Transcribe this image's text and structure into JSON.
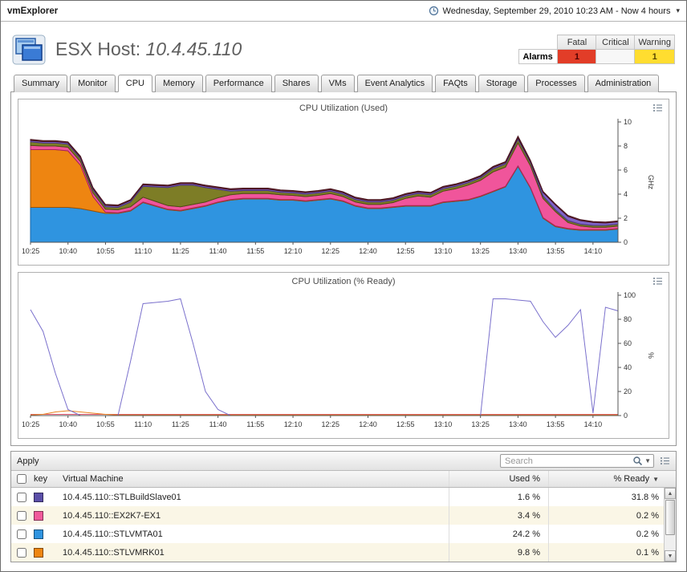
{
  "topbar": {
    "app_name": "vmExplorer",
    "time_range": "Wednesday, September 29, 2010 10:23 AM - Now 4 hours"
  },
  "header": {
    "title_prefix": "ESX Host: ",
    "host": "10.4.45.110",
    "alarms": {
      "label": "Alarms",
      "columns": [
        "Fatal",
        "Critical",
        "Warning"
      ],
      "fatal": "1",
      "critical": "",
      "warning": "1",
      "fatal_color": "#e23d28",
      "warning_color": "#ffdd30"
    }
  },
  "tabs": [
    {
      "label": "Summary",
      "active": false
    },
    {
      "label": "Monitor",
      "active": false
    },
    {
      "label": "CPU",
      "active": true
    },
    {
      "label": "Memory",
      "active": false
    },
    {
      "label": "Performance",
      "active": false
    },
    {
      "label": "Shares",
      "active": false
    },
    {
      "label": "VMs",
      "active": false
    },
    {
      "label": "Event Analytics",
      "active": false
    },
    {
      "label": "FAQts",
      "active": false
    },
    {
      "label": "Storage",
      "active": false
    },
    {
      "label": "Processes",
      "active": false
    },
    {
      "label": "Administration",
      "active": false
    }
  ],
  "chart_data": [
    {
      "type": "area",
      "title": "CPU Utilization (Used)",
      "unit": "GHz",
      "ymax": 10,
      "yticks": [
        0,
        2,
        4,
        6,
        8,
        10
      ],
      "x_ticks": [
        "10:25",
        "10:40",
        "10:55",
        "11:10",
        "11:25",
        "11:40",
        "11:55",
        "12:10",
        "12:25",
        "12:40",
        "12:55",
        "13:10",
        "13:25",
        "13:40",
        "13:55",
        "14:10"
      ],
      "x_tick_idx": [
        0,
        3,
        6,
        9,
        12,
        15,
        18,
        21,
        24,
        27,
        30,
        33,
        36,
        39,
        42,
        45
      ],
      "series": [
        {
          "name": "blue-series",
          "color": "#2f94e0",
          "stroke": "#1565a8",
          "values": [
            2.9,
            2.9,
            2.9,
            2.9,
            2.8,
            2.6,
            2.4,
            2.4,
            2.6,
            3.3,
            3.0,
            2.7,
            2.6,
            2.8,
            3.0,
            3.3,
            3.5,
            3.6,
            3.6,
            3.6,
            3.5,
            3.5,
            3.4,
            3.5,
            3.6,
            3.4,
            3.0,
            2.8,
            2.8,
            2.9,
            3.0,
            3.0,
            3.0,
            3.3,
            3.4,
            3.5,
            3.8,
            4.2,
            4.6,
            6.3,
            4.5,
            2.0,
            1.3,
            1.1,
            1.0,
            1.0,
            1.0,
            1.1
          ]
        },
        {
          "name": "orange-series",
          "color": "#ee8511",
          "stroke": "#9a5205",
          "values": [
            4.8,
            4.8,
            4.8,
            4.7,
            3.6,
            1.2,
            0.1,
            0.05,
            0.05,
            0.05,
            0.05,
            0.05,
            0.05,
            0.05,
            0.05,
            0.05,
            0.05,
            0.05,
            0.05,
            0.05,
            0.05,
            0.05,
            0.05,
            0.05,
            0.05,
            0.05,
            0.05,
            0.05,
            0.05,
            0.05,
            0.05,
            0.05,
            0.05,
            0.05,
            0.05,
            0.05,
            0.05,
            0.05,
            0.05,
            0.05,
            0.05,
            0.05,
            0.05,
            0.05,
            0.05,
            0.05,
            0.05,
            0.05
          ]
        },
        {
          "name": "pink-series",
          "color": "#f0559b",
          "stroke": "#aa2060",
          "values": [
            0.35,
            0.3,
            0.3,
            0.3,
            0.3,
            0.3,
            0.25,
            0.25,
            0.3,
            0.4,
            0.35,
            0.3,
            0.3,
            0.3,
            0.3,
            0.35,
            0.4,
            0.4,
            0.4,
            0.4,
            0.4,
            0.35,
            0.35,
            0.35,
            0.4,
            0.35,
            0.3,
            0.3,
            0.3,
            0.35,
            0.6,
            0.8,
            0.7,
            0.9,
            1.0,
            1.2,
            1.3,
            1.6,
            1.6,
            1.9,
            1.8,
            1.6,
            1.2,
            0.5,
            0.3,
            0.2,
            0.2,
            0.2
          ]
        },
        {
          "name": "olive-series",
          "color": "#7d7d26",
          "stroke": "#4f4f12",
          "values": [
            0.3,
            0.25,
            0.25,
            0.25,
            0.25,
            0.25,
            0.2,
            0.2,
            0.4,
            0.9,
            1.2,
            1.5,
            1.8,
            1.6,
            1.2,
            0.7,
            0.3,
            0.25,
            0.25,
            0.25,
            0.2,
            0.2,
            0.2,
            0.2,
            0.2,
            0.2,
            0.2,
            0.2,
            0.2,
            0.2,
            0.2,
            0.2,
            0.2,
            0.2,
            0.2,
            0.2,
            0.2,
            0.25,
            0.25,
            0.3,
            0.25,
            0.2,
            0.15,
            0.15,
            0.15,
            0.15,
            0.15,
            0.15
          ]
        },
        {
          "name": "purple-series",
          "color": "#7f63c8",
          "stroke": "#4b3585",
          "values": [
            0.12,
            0.12,
            0.12,
            0.12,
            0.12,
            0.12,
            0.12,
            0.12,
            0.12,
            0.12,
            0.12,
            0.12,
            0.12,
            0.12,
            0.12,
            0.12,
            0.12,
            0.12,
            0.12,
            0.12,
            0.12,
            0.12,
            0.12,
            0.12,
            0.12,
            0.12,
            0.12,
            0.12,
            0.12,
            0.12,
            0.12,
            0.12,
            0.12,
            0.12,
            0.12,
            0.12,
            0.12,
            0.12,
            0.12,
            0.12,
            0.12,
            0.3,
            0.4,
            0.35,
            0.3,
            0.25,
            0.2,
            0.2
          ]
        },
        {
          "name": "maroon-series",
          "color": "#7a3040",
          "stroke": "#4a1520",
          "values": [
            0.08,
            0.08,
            0.08,
            0.08,
            0.08,
            0.08,
            0.08,
            0.08,
            0.08,
            0.08,
            0.08,
            0.08,
            0.08,
            0.08,
            0.08,
            0.08,
            0.08,
            0.08,
            0.08,
            0.08,
            0.08,
            0.08,
            0.08,
            0.08,
            0.08,
            0.08,
            0.08,
            0.08,
            0.08,
            0.08,
            0.08,
            0.08,
            0.08,
            0.08,
            0.08,
            0.08,
            0.08,
            0.08,
            0.08,
            0.15,
            0.08,
            0.08,
            0.08,
            0.08,
            0.08,
            0.08,
            0.08,
            0.08
          ]
        }
      ]
    },
    {
      "type": "line",
      "title": "CPU Utilization (% Ready)",
      "unit": "%",
      "ymax": 100,
      "yticks": [
        0,
        20,
        40,
        60,
        80,
        100
      ],
      "x_ticks": [
        "10:25",
        "10:40",
        "10:55",
        "11:10",
        "11:25",
        "11:40",
        "11:55",
        "12:10",
        "12:25",
        "12:40",
        "12:55",
        "13:10",
        "13:25",
        "13:40",
        "13:55",
        "14:10"
      ],
      "x_tick_idx": [
        0,
        3,
        6,
        9,
        12,
        15,
        18,
        21,
        24,
        27,
        30,
        33,
        36,
        39,
        42,
        45
      ],
      "series": [
        {
          "name": "pink-line",
          "color": "#e05570",
          "values": [
            1,
            1,
            1,
            1,
            1,
            1,
            1,
            1,
            1,
            1,
            1,
            1,
            1,
            1,
            1,
            1,
            1,
            1,
            1,
            1,
            1,
            1,
            1,
            1,
            1,
            1,
            1,
            1,
            1,
            1,
            1,
            1,
            1,
            1,
            1,
            1,
            1,
            1,
            1,
            1,
            1,
            1,
            1,
            1,
            1,
            1,
            1,
            1
          ]
        },
        {
          "name": "orange-line",
          "color": "#e8821e",
          "values": [
            0.5,
            1,
            3,
            4,
            3,
            2,
            1,
            0.5,
            0.5,
            0.5,
            0.5,
            0.5,
            0.5,
            0.5,
            0.5,
            0.5,
            0.5,
            0.5,
            0.5,
            0.5,
            0.5,
            0.5,
            0.5,
            0.5,
            0.5,
            0.5,
            0.5,
            0.5,
            0.5,
            0.5,
            0.5,
            0.5,
            0.5,
            0.5,
            0.5,
            0.5,
            0.5,
            0.5,
            0.5,
            0.5,
            0.5,
            0.5,
            0.5,
            0.5,
            0.5,
            0.5,
            0.5,
            0.5
          ]
        },
        {
          "name": "purple-line",
          "color": "#7a70cc",
          "values": [
            88,
            70,
            35,
            5,
            0,
            0,
            0,
            0,
            45,
            93,
            94,
            95,
            97,
            60,
            20,
            5,
            0,
            0,
            0,
            0,
            0,
            0,
            0,
            0,
            0,
            0,
            0,
            0,
            0,
            0,
            0,
            0,
            0,
            0,
            0,
            0,
            0,
            97,
            97,
            96,
            95,
            78,
            65,
            75,
            88,
            2,
            90,
            87
          ]
        }
      ]
    }
  ],
  "table": {
    "apply_label": "Apply",
    "search_placeholder": "Search",
    "columns": {
      "key": "key",
      "vm": "Virtual Machine",
      "used": "Used %",
      "ready": "% Ready"
    },
    "sort_indicator": "▼",
    "rows": [
      {
        "color": "#5b4fa8",
        "vm": "10.4.45.110::STLBuildSlave01",
        "used": "1.6 %",
        "ready": "31.8 %"
      },
      {
        "color": "#f05a9b",
        "vm": "10.4.45.110::EX2K7-EX1",
        "used": "3.4 %",
        "ready": "0.2 %"
      },
      {
        "color": "#2f94e0",
        "vm": "10.4.45.110::STLVMTA01",
        "used": "24.2 %",
        "ready": "0.2 %"
      },
      {
        "color": "#ee8511",
        "vm": "10.4.45.110::STLVMRK01",
        "used": "9.8 %",
        "ready": "0.1 %"
      }
    ]
  }
}
